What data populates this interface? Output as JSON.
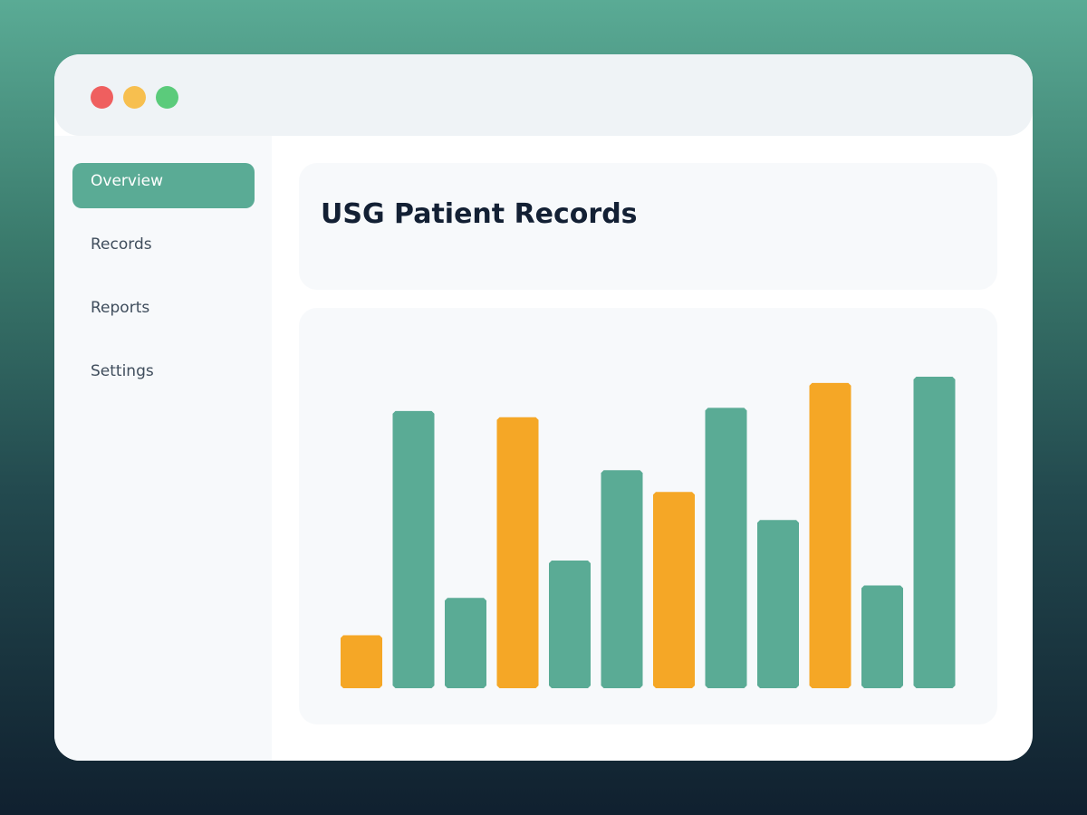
{
  "window": {
    "controls": [
      {
        "name": "close",
        "color": "#ef5f5f"
      },
      {
        "name": "minimize",
        "color": "#f7bf4f"
      },
      {
        "name": "maximize",
        "color": "#5bcb7b"
      }
    ]
  },
  "sidebar": {
    "items": [
      {
        "label": "Overview",
        "active": true
      },
      {
        "label": "Records",
        "active": false
      },
      {
        "label": "Reports",
        "active": false
      },
      {
        "label": "Settings",
        "active": false
      }
    ]
  },
  "main": {
    "title": "USG Patient Records"
  },
  "colors": {
    "accent": "#5aab95",
    "highlight": "#f5a726"
  },
  "chart_data": {
    "type": "bar",
    "title": "",
    "xlabel": "",
    "ylabel": "",
    "ylim": [
      0,
      100
    ],
    "grid": false,
    "values": [
      17,
      89,
      29,
      87,
      41,
      70,
      63,
      90,
      54,
      98,
      33,
      100
    ],
    "highlighted": [
      true,
      false,
      false,
      true,
      false,
      false,
      true,
      false,
      false,
      true,
      false,
      false
    ]
  }
}
